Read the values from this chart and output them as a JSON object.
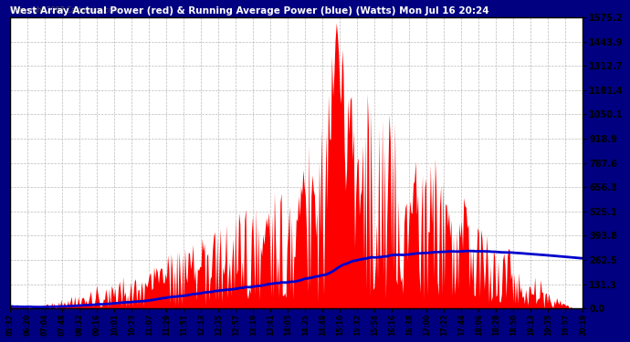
{
  "title": "West Array Actual Power (red) & Running Average Power (blue) (Watts) Mon Jul 16 20:24",
  "copyright": "Copyright 2007 Cartronics.com",
  "bg_color": "#000080",
  "plot_bg_color": "#ffffff",
  "grid_color": "#aaaaaa",
  "title_color": "#ffffff",
  "ytick_color": "#000000",
  "xtick_color": "#000000",
  "red_color": "#ff0000",
  "blue_color": "#0000cc",
  "ymax": 1575.2,
  "yticks": [
    0.0,
    131.3,
    262.5,
    393.8,
    525.1,
    656.3,
    787.6,
    918.9,
    1050.1,
    1181.4,
    1312.7,
    1443.9,
    1575.2
  ],
  "xtick_labels": [
    "05:32",
    "06:20",
    "07:04",
    "07:48",
    "08:32",
    "09:16",
    "10:01",
    "10:23",
    "11:07",
    "11:29",
    "11:51",
    "12:13",
    "12:35",
    "12:57",
    "13:19",
    "13:41",
    "14:03",
    "14:25",
    "14:48",
    "15:10",
    "15:32",
    "15:54",
    "16:16",
    "16:38",
    "17:00",
    "17:22",
    "17:44",
    "18:06",
    "18:28",
    "18:50",
    "19:13",
    "19:35",
    "19:57",
    "20:19"
  ]
}
